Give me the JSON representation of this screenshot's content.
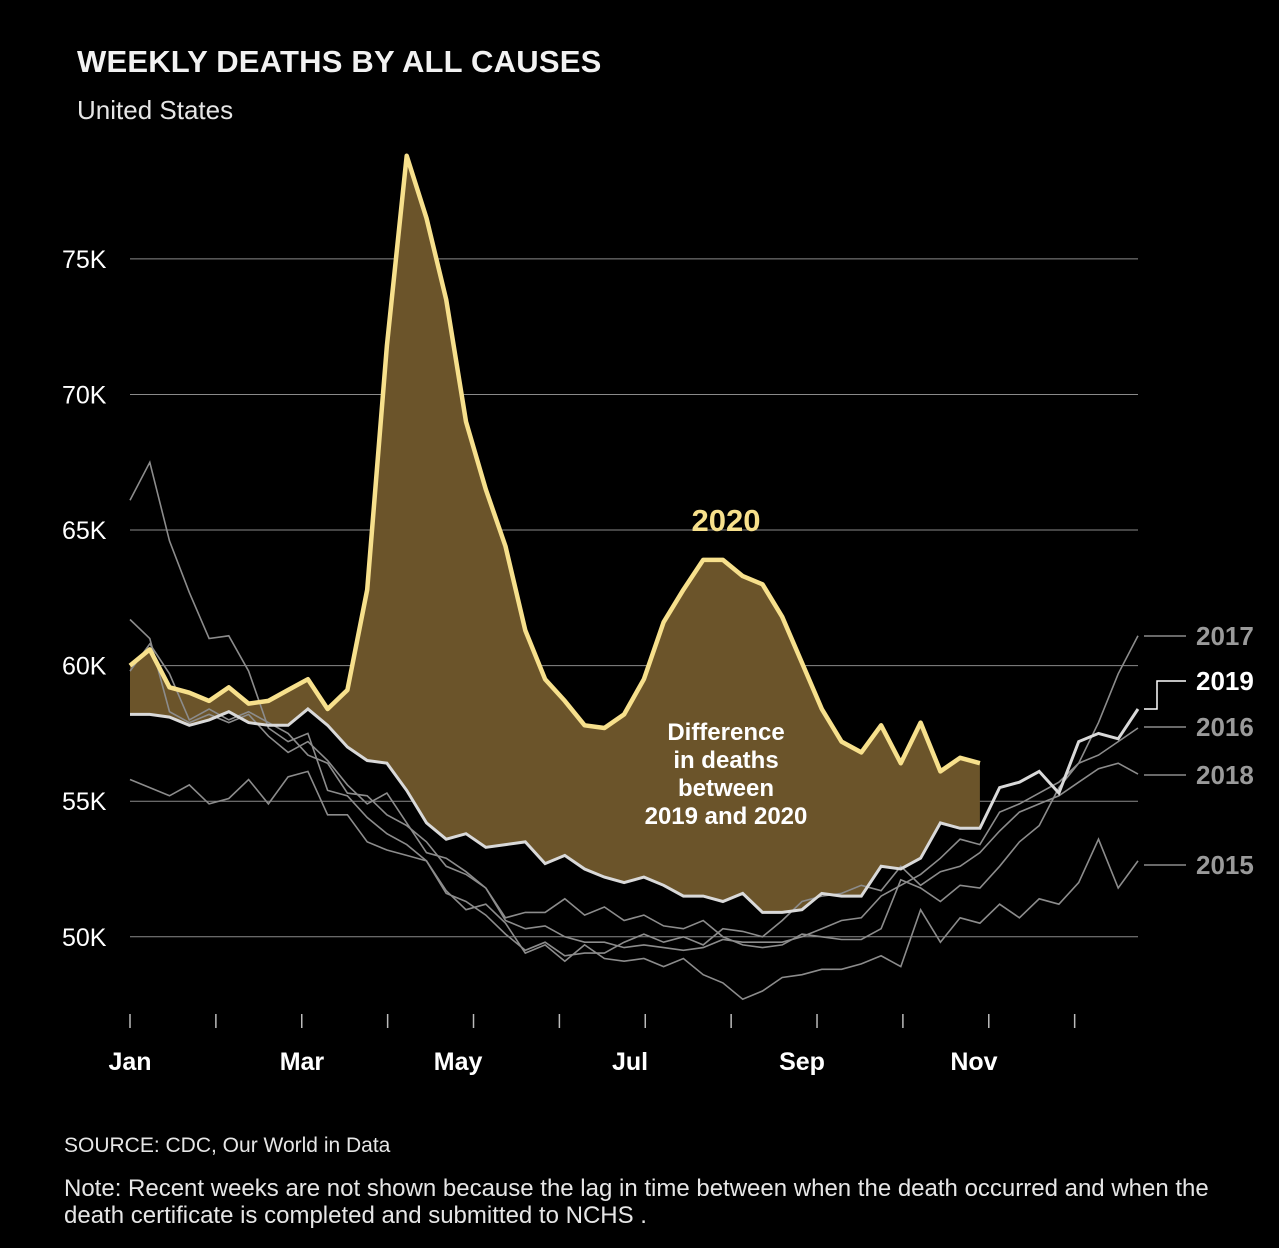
{
  "header": {
    "title": "WEEKLY DEATHS BY ALL CAUSES",
    "subtitle": "United States"
  },
  "footer": {
    "source": "SOURCE: CDC, Our World in Data",
    "note": "Note: Recent weeks are not shown because the lag in time between when the death occurred and when the death certificate is completed and submitted to NCHS ."
  },
  "colors": {
    "background": "#000000",
    "highlight_2020": "#f7e08c",
    "difference_fill": "#6b542a",
    "line_2019": "#d9d9d9",
    "other_years": "#8c8c8c",
    "gridline": "#8a8a8a"
  },
  "chart_data": {
    "type": "line",
    "title": "WEEKLY DEATHS BY ALL CAUSES",
    "subtitle": "United States",
    "x_unit": "week",
    "x_tick_labels": [
      "Jan",
      "Mar",
      "May",
      "Jul",
      "Sep",
      "Nov"
    ],
    "x_tick_weeks": [
      1,
      9.7,
      17.6,
      26.3,
      35,
      43.7
    ],
    "y_tick_values": [
      50000,
      55000,
      60000,
      65000,
      70000,
      75000
    ],
    "y_tick_labels": [
      "50K",
      "55K",
      "60K",
      "65K",
      "70K",
      "75K"
    ],
    "ylim": [
      47300,
      79200
    ],
    "xlim": [
      1,
      52
    ],
    "grid": true,
    "annotations": {
      "label_2020": "2020",
      "difference_lines": [
        "Difference",
        "in deaths",
        "between",
        "2019 and 2020"
      ]
    },
    "series": [
      {
        "name": "2020",
        "highlight": true,
        "values": [
          60000,
          60600,
          59200,
          59000,
          58700,
          59200,
          58600,
          58700,
          59100,
          59500,
          58400,
          59100,
          62800,
          71800,
          78800,
          76500,
          73500,
          69000,
          66500,
          64400,
          61300,
          59500,
          58700,
          57800,
          57700,
          58200,
          59500,
          61600,
          62800,
          63900,
          63900,
          63300,
          63000,
          61800,
          60100,
          58400,
          57200,
          56800,
          57800,
          56400,
          57900,
          56100,
          56600,
          56400
        ]
      },
      {
        "name": "2019",
        "values": [
          58200,
          58200,
          58100,
          57800,
          58000,
          58300,
          57900,
          57800,
          57800,
          58400,
          57800,
          57000,
          56500,
          56400,
          55400,
          54200,
          53600,
          53800,
          53300,
          53400,
          53500,
          52700,
          53000,
          52500,
          52200,
          52000,
          52200,
          51900,
          51500,
          51500,
          51300,
          51600,
          50900,
          50900,
          51000,
          51600,
          51500,
          51500,
          52600,
          52500,
          52900,
          54200,
          54000,
          54000,
          55500,
          55700,
          56100,
          55300,
          57200,
          57500,
          57300,
          58400
        ]
      },
      {
        "name": "2017",
        "label_offset": 0,
        "values": [
          61700,
          61000,
          58300,
          57900,
          58200,
          57900,
          58200,
          57400,
          56800,
          57200,
          56500,
          55600,
          54900,
          55300,
          54200,
          53100,
          52900,
          52400,
          51800,
          50700,
          50900,
          50900,
          51400,
          50800,
          51100,
          50600,
          50800,
          50400,
          50300,
          50600,
          50000,
          49700,
          49600,
          49700,
          50100,
          50000,
          49900,
          49900,
          50300,
          52100,
          51800,
          51300,
          51900,
          51800,
          52600,
          53500,
          54100,
          55500,
          56400,
          57900,
          59700,
          61100
        ]
      },
      {
        "name": "2016",
        "values": [
          59800,
          60800,
          59700,
          58000,
          58400,
          58000,
          58300,
          57900,
          57500,
          56700,
          56400,
          55300,
          55200,
          54500,
          54100,
          53500,
          52600,
          52300,
          51800,
          50600,
          50300,
          50400,
          50000,
          49800,
          49800,
          49600,
          49700,
          49600,
          49500,
          49600,
          49900,
          49800,
          49800,
          49800,
          50000,
          50300,
          50600,
          50700,
          51500,
          51900,
          52300,
          52900,
          53600,
          53400,
          54600,
          54900,
          55300,
          55700,
          56400,
          56700,
          57200,
          57700
        ]
      },
      {
        "name": "2018",
        "values": [
          66100,
          67500,
          64600,
          62700,
          61000,
          61100,
          59800,
          57700,
          57200,
          57500,
          55400,
          55200,
          54400,
          53800,
          53400,
          52800,
          51600,
          51300,
          50800,
          50100,
          49500,
          49800,
          49300,
          49400,
          49400,
          49800,
          50100,
          49800,
          50000,
          49700,
          50300,
          50200,
          50000,
          50600,
          51300,
          51500,
          51600,
          51900,
          51700,
          52600,
          51900,
          52400,
          52600,
          53100,
          53900,
          54600,
          54900,
          55200,
          55700,
          56200,
          56400,
          56000
        ]
      },
      {
        "name": "2015",
        "values": [
          55800,
          55500,
          55200,
          55600,
          54900,
          55100,
          55800,
          54900,
          55900,
          56100,
          54500,
          54500,
          53500,
          53200,
          53000,
          52800,
          51700,
          51000,
          51200,
          50500,
          49400,
          49700,
          49100,
          49700,
          49200,
          49100,
          49200,
          48900,
          49200,
          48600,
          48300,
          47700,
          48000,
          48500,
          48600,
          48800,
          48800,
          49000,
          49300,
          48900,
          51000,
          49800,
          50700,
          50500,
          51200,
          50700,
          51400,
          51200,
          52000,
          53600,
          51800,
          52800
        ]
      }
    ]
  }
}
